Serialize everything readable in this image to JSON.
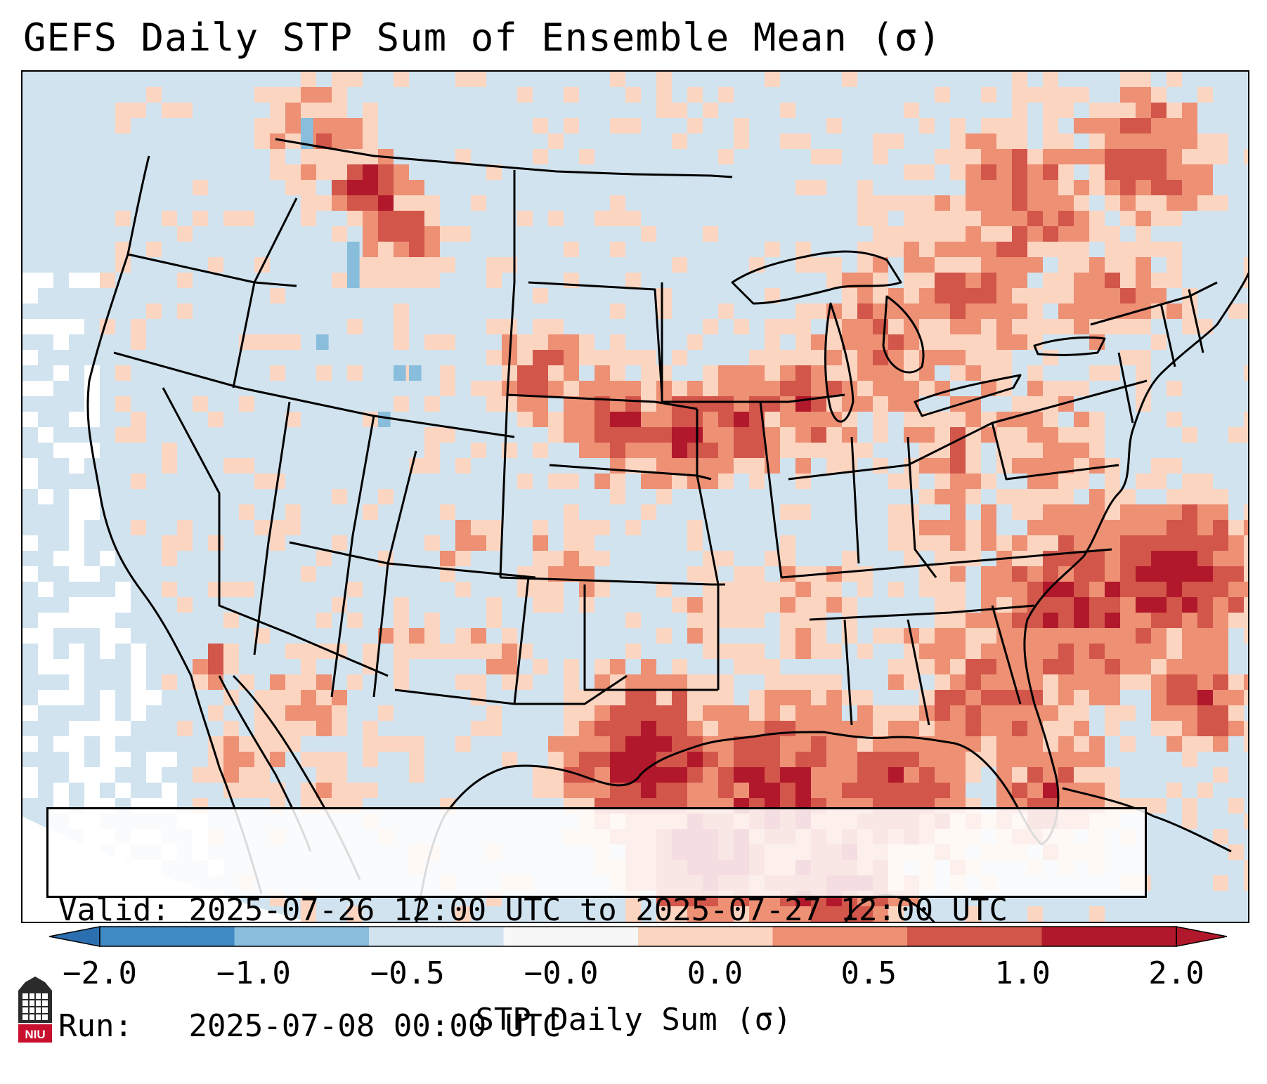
{
  "title": "GEFS Daily STP Sum of Ensemble Mean (σ)",
  "info": {
    "valid_label": "Valid:",
    "valid_text": "2025-07-26 12:00 UTC to 2025-07-27 12:00 UTC",
    "run_label": "Run:",
    "run_text": "2025-07-08 00:00 UTC"
  },
  "colorbar": {
    "label": "STP Daily Sum (σ)",
    "ticks": [
      "−2.0",
      "−1.0",
      "−0.5",
      "−0.0",
      "0.0",
      "0.5",
      "1.0",
      "2.0"
    ],
    "colors": [
      "#3f8ac4",
      "#88bedc",
      "#d1e3ef",
      "#f7f7f7",
      "#fcd5c1",
      "#ed9074",
      "#d2564a",
      "#b2182b"
    ],
    "extend_low_color": "#2c6fb0",
    "extend_high_color": "#b2182b"
  },
  "map": {
    "land_color": "#d1e3ef",
    "nodata_color": "#ffffff",
    "border_color": "#000000",
    "category_colors": {
      "1": "#fcd5c1",
      "2": "#ed9074",
      "3": "#d2564a",
      "4": "#b2182b",
      "n": "#88bedc"
    }
  },
  "logo": {
    "text": "NIU",
    "color": "#c8102e"
  }
}
